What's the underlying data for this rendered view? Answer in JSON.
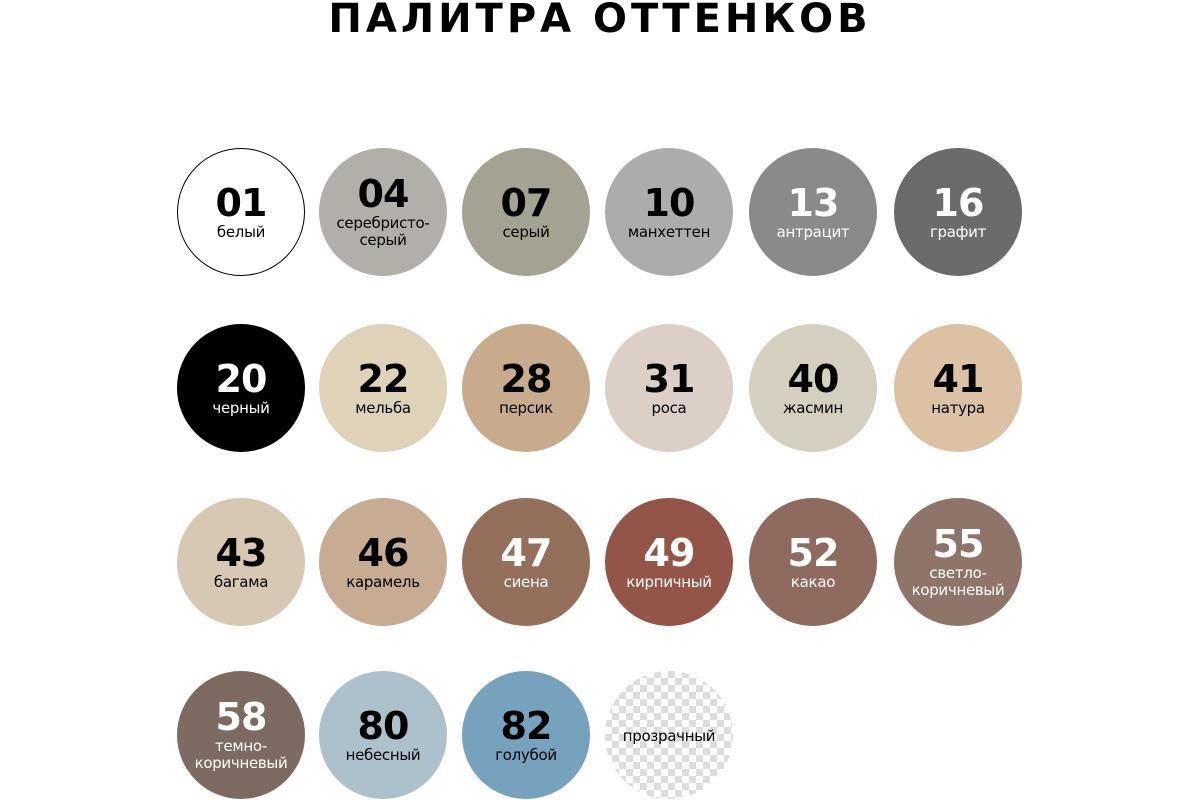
{
  "title": "ПАЛИТРА ОТТЕНКОВ",
  "swatches": [
    {
      "code": "01",
      "name": "белый",
      "color": "#ffffff",
      "text": "#000000",
      "border": "#000000"
    },
    {
      "code": "04",
      "name": "серебристо-\nсерый",
      "color": "#b2afa9",
      "text": "#000000"
    },
    {
      "code": "07",
      "name": "серый",
      "color": "#a5a193",
      "text": "#000000"
    },
    {
      "code": "10",
      "name": "манхеттен",
      "color": "#acacac",
      "text": "#000000"
    },
    {
      "code": "13",
      "name": "антрацит",
      "color": "#8a8a8a",
      "text": "#ffffff"
    },
    {
      "code": "16",
      "name": "графит",
      "color": "#6b6b6b",
      "text": "#ffffff"
    },
    {
      "code": "20",
      "name": "черный",
      "color": "#000000",
      "text": "#ffffff"
    },
    {
      "code": "22",
      "name": "мельба",
      "color": "#ded3b8",
      "text": "#000000"
    },
    {
      "code": "28",
      "name": "персик",
      "color": "#c8ab8d",
      "text": "#000000"
    },
    {
      "code": "31",
      "name": "роса",
      "color": "#dccfc7",
      "text": "#000000"
    },
    {
      "code": "40",
      "name": "жасмин",
      "color": "#d4cfbf",
      "text": "#000000"
    },
    {
      "code": "41",
      "name": "натура",
      "color": "#dcc1a5",
      "text": "#000000"
    },
    {
      "code": "43",
      "name": "багама",
      "color": "#d7c8b4",
      "text": "#000000"
    },
    {
      "code": "46",
      "name": "карамель",
      "color": "#c8ab93",
      "text": "#000000"
    },
    {
      "code": "47",
      "name": "сиена",
      "color": "#936f5c",
      "text": "#ffffff"
    },
    {
      "code": "49",
      "name": "кирпичный",
      "color": "#935547",
      "text": "#ffffff"
    },
    {
      "code": "52",
      "name": "какао",
      "color": "#8f6a5e",
      "text": "#ffffff"
    },
    {
      "code": "55",
      "name": "светло-\nкоричневый",
      "color": "#8f7569",
      "text": "#ffffff"
    },
    {
      "code": "58",
      "name": "темно-\nкоричневый",
      "color": "#7c6a63",
      "text": "#ffffff"
    },
    {
      "code": "80",
      "name": "небесный",
      "color": "#acc1cc",
      "text": "#000000"
    },
    {
      "code": "82",
      "name": "голубой",
      "color": "#77a2bd",
      "text": "#000000"
    },
    {
      "code": "",
      "name": "прозрачный",
      "color": "transparent",
      "text": "#000000",
      "pattern": "checker"
    }
  ]
}
